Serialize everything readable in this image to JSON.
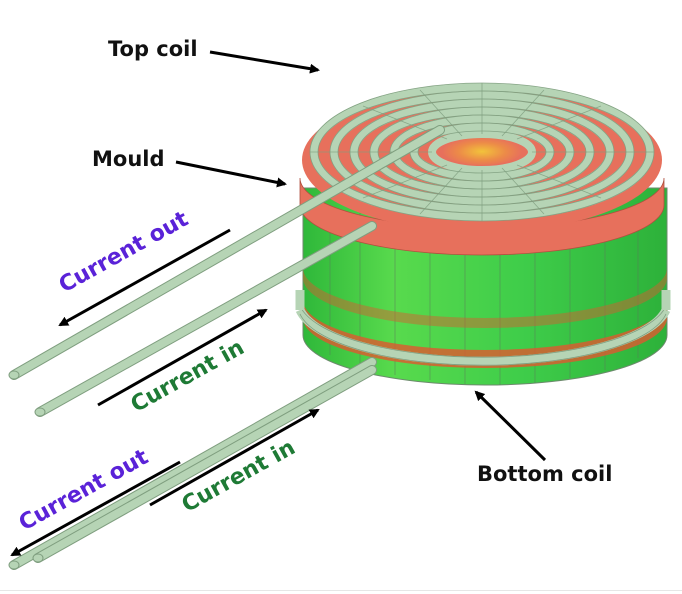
{
  "labels": {
    "top_coil": "Top coil",
    "mould": "Mould",
    "bottom_coil": "Bottom coil",
    "current_out_1": "Current out",
    "current_in_1": "Current in",
    "current_out_2": "Current out",
    "current_in_2": "Current in"
  },
  "colors": {
    "current_out": "#5a22d8",
    "current_in": "#1e7a35",
    "coil": "#b6d4b5",
    "mould_top": "#e7705c",
    "mould_side": "#4cd44a",
    "hot": "#e8b13a"
  }
}
